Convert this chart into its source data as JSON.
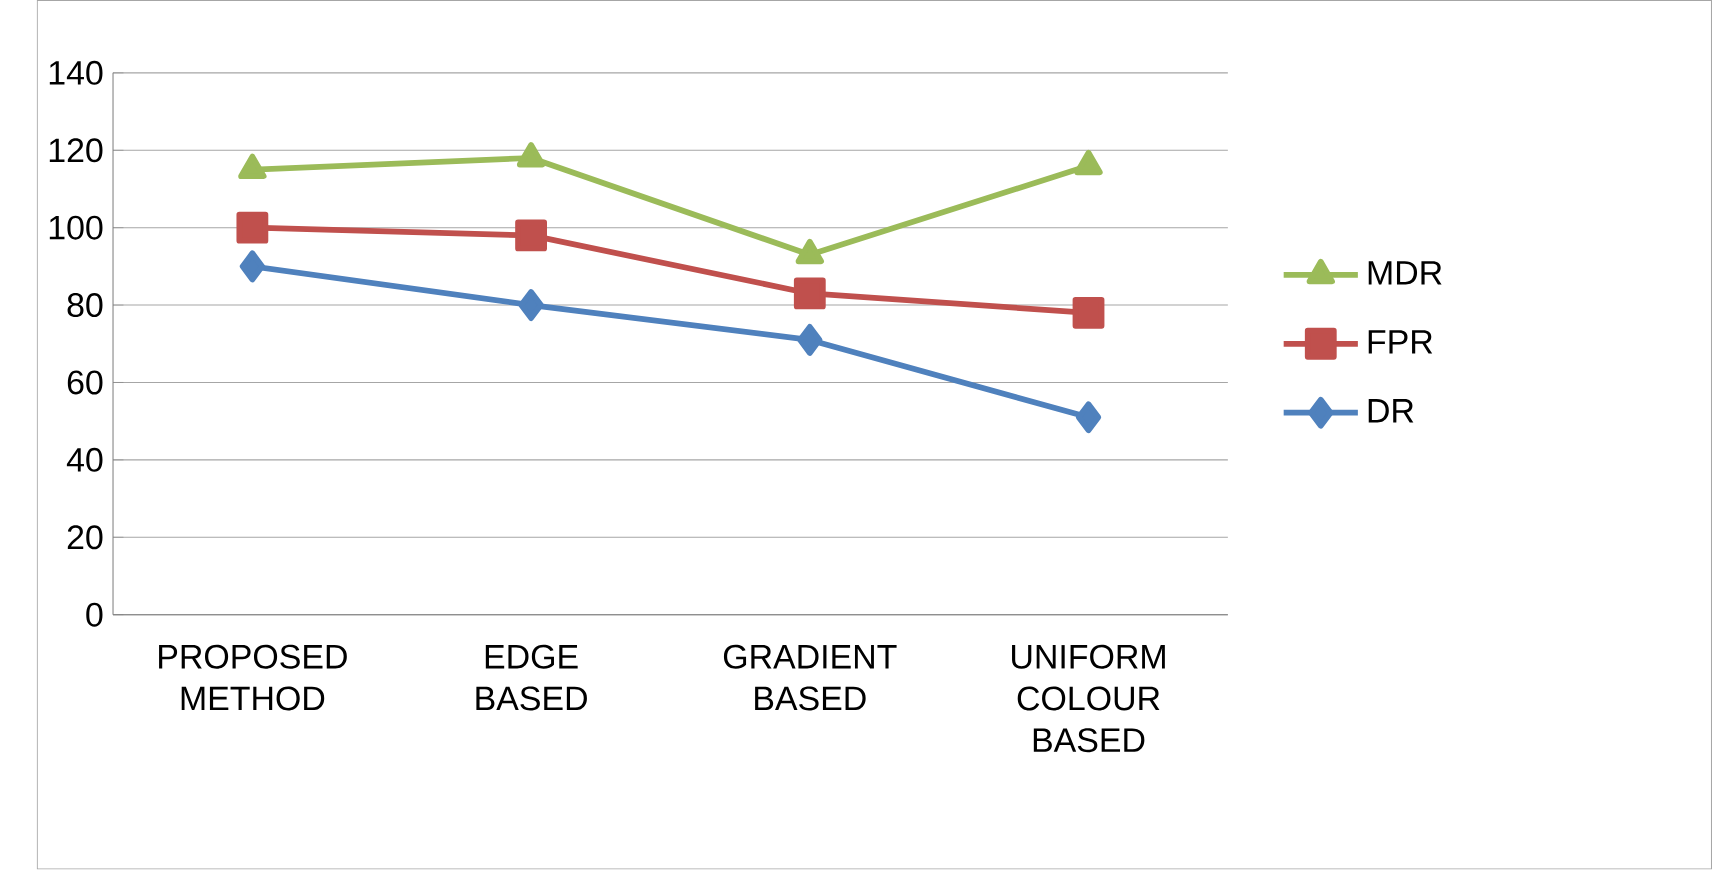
{
  "chart_data": {
    "type": "line",
    "categories": [
      "PROPOSED METHOD",
      "EDGE BASED",
      "GRADIENT BASED",
      "UNIFORM COLOUR BASED"
    ],
    "series": [
      {
        "name": "MDR",
        "color": "#9bbb59",
        "marker": "triangle",
        "values": [
          115,
          118,
          93,
          116
        ]
      },
      {
        "name": "FPR",
        "color": "#c0504d",
        "marker": "square",
        "values": [
          100,
          98,
          83,
          78
        ]
      },
      {
        "name": "DR",
        "color": "#4f81bd",
        "marker": "diamond",
        "values": [
          90,
          80,
          71,
          51
        ]
      }
    ],
    "ylim": [
      0,
      140
    ],
    "yticks": [
      0,
      20,
      40,
      60,
      80,
      100,
      120,
      140
    ],
    "grid": "y",
    "legend": "right"
  }
}
